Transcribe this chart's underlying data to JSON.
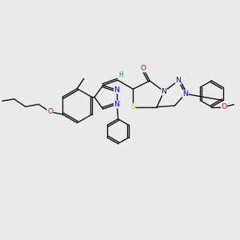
{
  "background_color": "#ebebeb",
  "figsize": [
    3.0,
    3.0
  ],
  "dpi": 100,
  "atom_colors": {
    "N": "#0000ee",
    "O": "#ee0000",
    "S": "#cccc00",
    "H": "#008080"
  },
  "bond_color": "#111111",
  "bond_width": 1.0,
  "dbo": 0.07
}
